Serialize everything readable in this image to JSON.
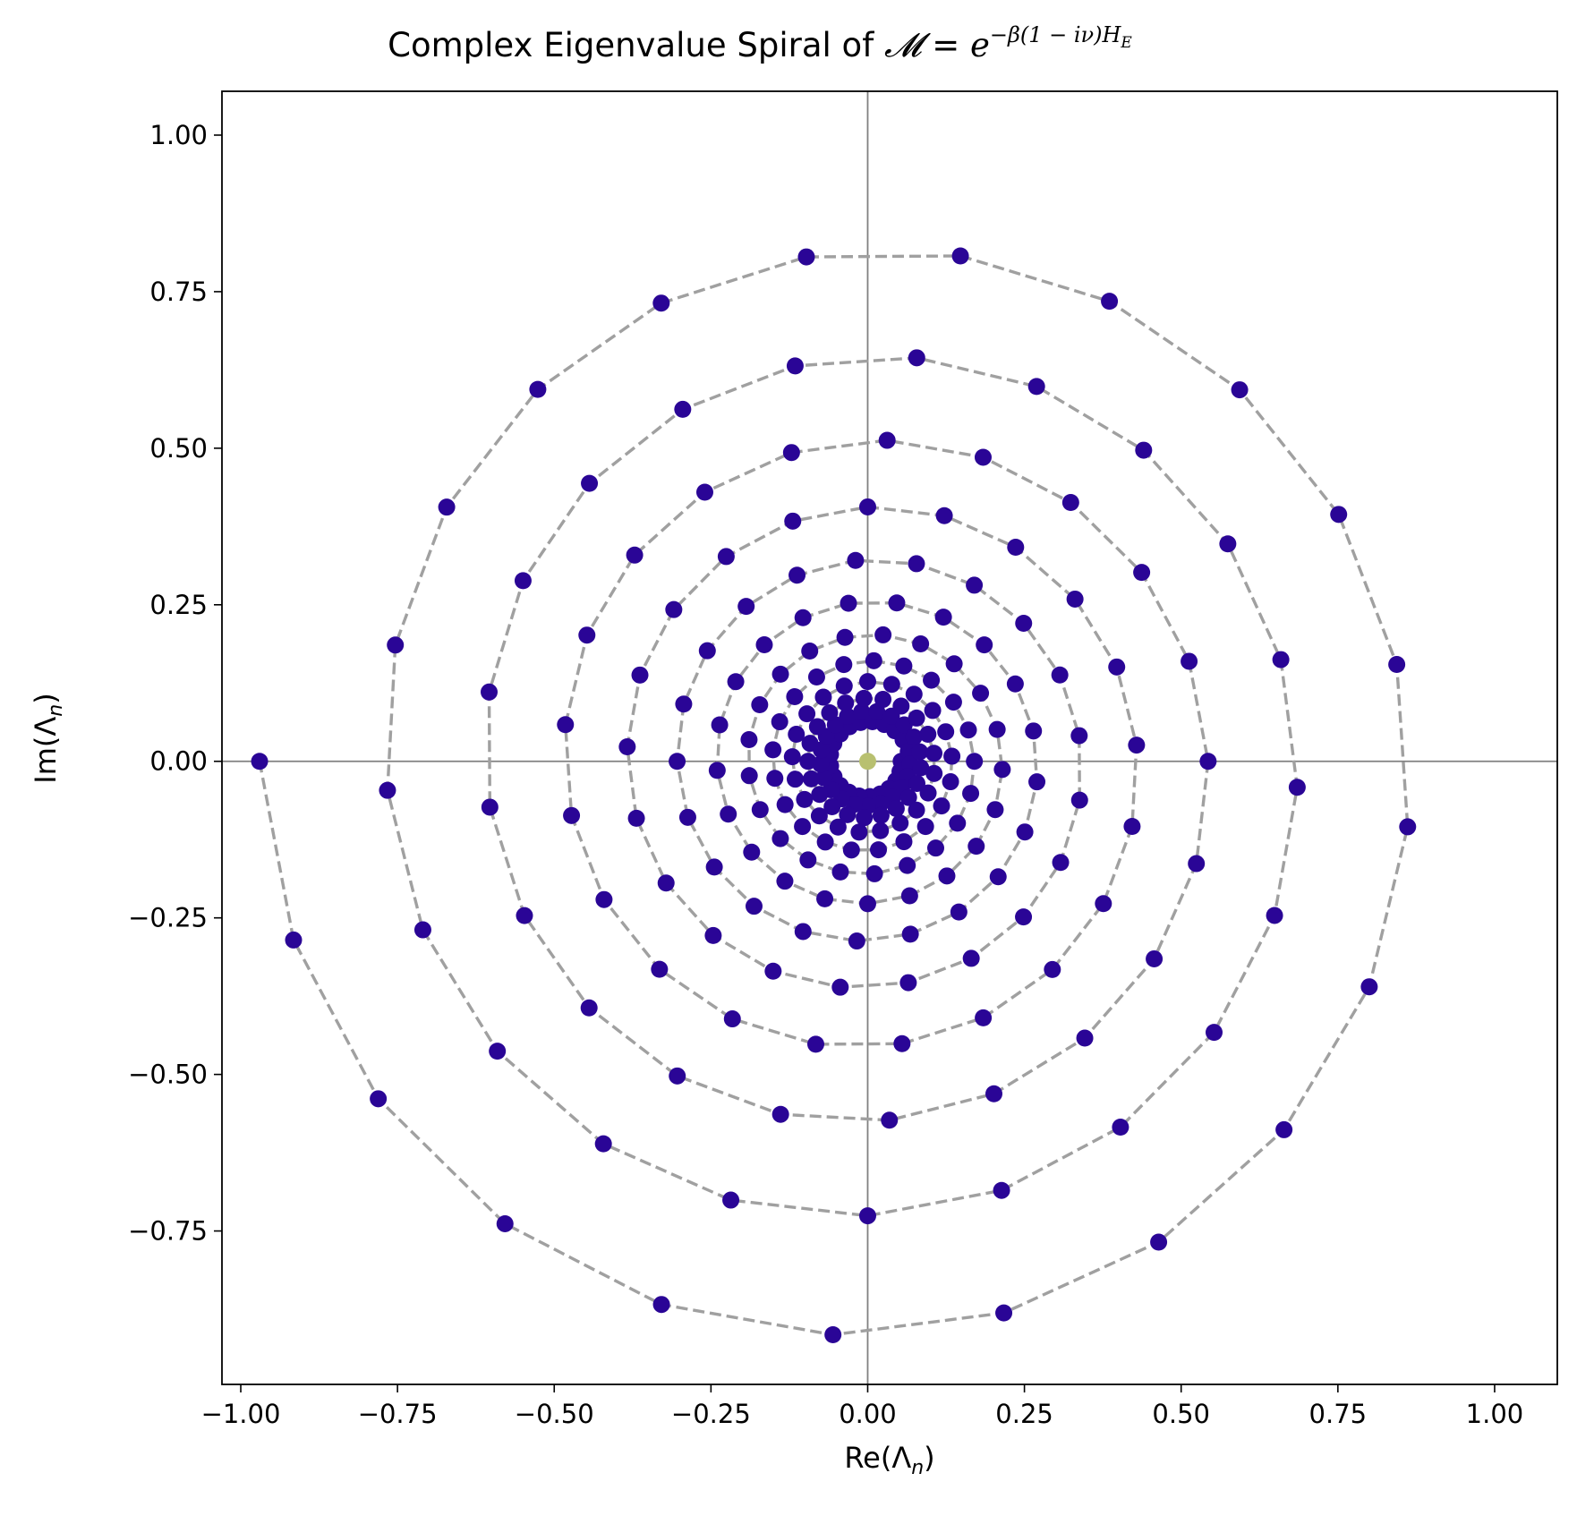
{
  "chart_data": {
    "type": "scatter",
    "title": "Complex Eigenvalue Spiral of",
    "title_math": {
      "lhs": "𝓜",
      "equals": " = ",
      "base": "e",
      "exponent": "−β(1 − iν)H",
      "exponent_subscript": "E"
    },
    "xlabel": "Re(Λ",
    "xlabel_sub": "n",
    "xlabel_suffix": ")",
    "ylabel": "Im(Λ",
    "ylabel_sub": "n",
    "ylabel_suffix": ")",
    "xlim": [
      -1.03,
      1.1
    ],
    "ylim": [
      -0.995,
      1.07
    ],
    "x_ticks": [
      -1.0,
      -0.75,
      -0.5,
      -0.25,
      0.0,
      0.25,
      0.5,
      0.75,
      1.0
    ],
    "x_tick_labels": [
      "−1.00",
      "−0.75",
      "−0.50",
      "−0.25",
      "0.00",
      "0.25",
      "0.50",
      "0.75",
      "1.00"
    ],
    "y_ticks": [
      -0.75,
      -0.5,
      -0.25,
      0.0,
      0.25,
      0.5,
      0.75,
      1.0
    ],
    "y_tick_labels": [
      "−0.75",
      "−0.50",
      "−0.25",
      "0.00",
      "0.25",
      "0.50",
      "0.75",
      "1.00"
    ],
    "grid": false,
    "reference_lines": {
      "x": 0,
      "y": 0
    },
    "spiral": {
      "turns": 13,
      "points_per_turn": 20,
      "decay_per_turn": 0.8,
      "start_angle_deg": 0,
      "end_angle_deg": 180,
      "end_radius": 0.97
    },
    "colors": {
      "marker": "#2a0596",
      "line": "#a0a0a0",
      "reference": "#808080",
      "center_marker": "#b8c070"
    }
  }
}
